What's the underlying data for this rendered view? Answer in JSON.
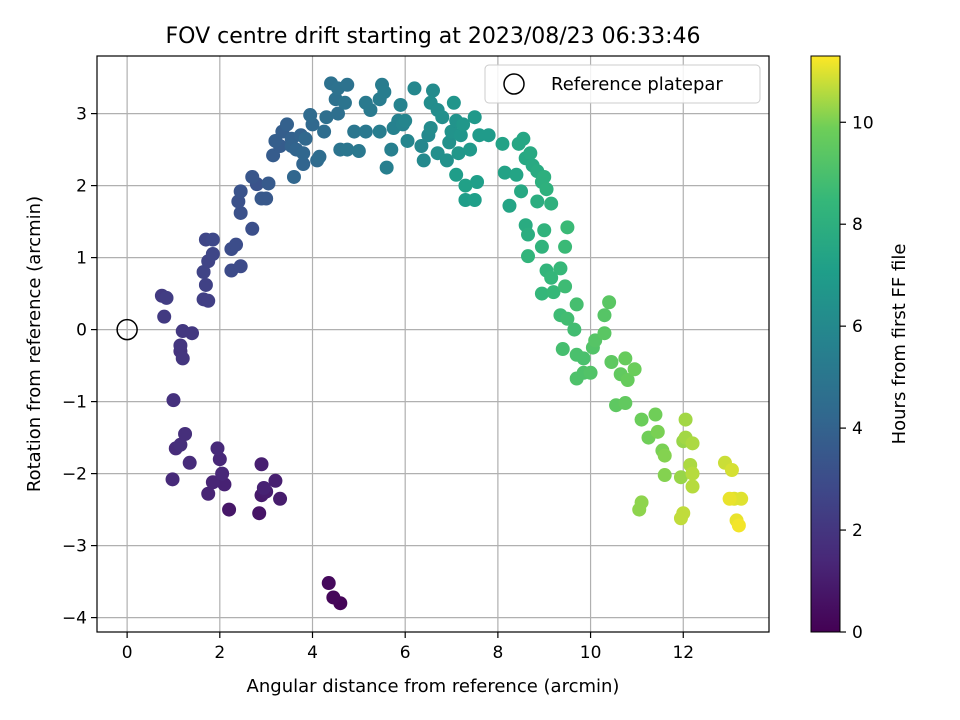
{
  "chart_data": {
    "type": "scatter",
    "title": "FOV centre drift starting at 2023/08/23 06:33:46",
    "xlabel": "Angular distance from reference (arcmin)",
    "ylabel": "Rotation from reference (arcmin)",
    "xlim": [
      -0.65,
      13.85
    ],
    "ylim": [
      -4.2,
      3.8
    ],
    "x_ticks": [
      0,
      2,
      4,
      6,
      8,
      10,
      12
    ],
    "y_ticks": [
      -4,
      -3,
      -2,
      -1,
      0,
      1,
      2,
      3
    ],
    "x_tick_labels": [
      "0",
      "2",
      "4",
      "6",
      "8",
      "10",
      "12"
    ],
    "y_tick_labels": [
      "−4",
      "−3",
      "−2",
      "−1",
      "0",
      "1",
      "2",
      "3"
    ],
    "grid": true,
    "legend": {
      "position": "top-right",
      "entries": [
        "Reference platepar"
      ]
    },
    "reference_point": {
      "x": 0,
      "y": 0,
      "label": "Reference platepar"
    },
    "colorbar": {
      "label": "Hours from first FF file",
      "colormap": "viridis",
      "range": [
        0,
        11.3
      ],
      "ticks": [
        0,
        2,
        4,
        6,
        8,
        10
      ],
      "tick_labels": [
        "0",
        "2",
        "4",
        "6",
        "8",
        "10"
      ]
    },
    "series": [
      {
        "points": [
          [
            4.6,
            -3.8,
            0.1
          ],
          [
            4.45,
            -3.72,
            0.2
          ],
          [
            4.35,
            -3.52,
            0.3
          ],
          [
            2.85,
            -2.55,
            0.7
          ],
          [
            2.2,
            -2.5,
            0.8
          ],
          [
            2.9,
            -2.3,
            0.9
          ],
          [
            3.3,
            -2.35,
            1.0
          ],
          [
            3.0,
            -2.25,
            1.0
          ],
          [
            3.2,
            -2.1,
            1.1
          ],
          [
            2.9,
            -1.87,
            1.1
          ],
          [
            2.95,
            -2.2,
            1.2
          ],
          [
            2.1,
            -2.15,
            1.2
          ],
          [
            1.75,
            -2.28,
            1.3
          ],
          [
            1.85,
            -2.12,
            1.3
          ],
          [
            2.05,
            -2.0,
            1.4
          ],
          [
            2.0,
            -1.8,
            1.4
          ],
          [
            1.95,
            -1.65,
            1.5
          ],
          [
            0.98,
            -2.08,
            1.5
          ],
          [
            1.35,
            -1.85,
            1.6
          ],
          [
            1.05,
            -1.65,
            1.6
          ],
          [
            1.15,
            -1.6,
            1.7
          ],
          [
            1.25,
            -1.45,
            1.7
          ],
          [
            1.0,
            -0.98,
            1.8
          ],
          [
            1.15,
            -0.3,
            1.9
          ],
          [
            1.2,
            -0.4,
            2.0
          ],
          [
            1.15,
            -0.22,
            2.0
          ],
          [
            1.2,
            -0.02,
            2.1
          ],
          [
            1.4,
            -0.05,
            2.1
          ],
          [
            0.8,
            0.18,
            2.2
          ],
          [
            0.75,
            0.47,
            2.2
          ],
          [
            0.85,
            0.44,
            2.3
          ],
          [
            1.65,
            0.42,
            2.4
          ],
          [
            1.75,
            0.4,
            2.4
          ],
          [
            1.7,
            0.62,
            2.5
          ],
          [
            1.65,
            0.8,
            2.6
          ],
          [
            1.75,
            0.95,
            2.6
          ],
          [
            1.85,
            1.05,
            2.7
          ],
          [
            1.7,
            1.25,
            2.7
          ],
          [
            1.85,
            1.25,
            2.8
          ],
          [
            2.25,
            0.82,
            2.9
          ],
          [
            2.45,
            0.88,
            2.9
          ],
          [
            2.25,
            1.12,
            3.0
          ],
          [
            2.35,
            1.18,
            3.0
          ],
          [
            2.7,
            1.4,
            3.1
          ],
          [
            2.45,
            1.62,
            3.2
          ],
          [
            2.4,
            1.78,
            3.2
          ],
          [
            2.45,
            1.92,
            3.3
          ],
          [
            2.8,
            2.02,
            3.3
          ],
          [
            2.7,
            2.12,
            3.4
          ],
          [
            2.9,
            1.82,
            3.5
          ],
          [
            3.0,
            1.82,
            3.5
          ],
          [
            3.05,
            2.03,
            3.6
          ],
          [
            3.15,
            2.42,
            3.7
          ],
          [
            3.3,
            2.55,
            3.7
          ],
          [
            3.2,
            2.62,
            3.8
          ],
          [
            3.35,
            2.75,
            3.8
          ],
          [
            3.45,
            2.85,
            3.9
          ],
          [
            3.55,
            2.65,
            3.9
          ],
          [
            3.75,
            2.7,
            4.0
          ],
          [
            3.55,
            2.55,
            4.0
          ],
          [
            3.65,
            2.5,
            4.1
          ],
          [
            3.8,
            2.3,
            4.1
          ],
          [
            3.8,
            2.45,
            4.2
          ],
          [
            3.6,
            2.12,
            4.2
          ],
          [
            3.85,
            2.65,
            4.3
          ],
          [
            4.0,
            2.85,
            4.3
          ],
          [
            3.95,
            2.98,
            4.4
          ],
          [
            4.1,
            2.35,
            4.4
          ],
          [
            4.15,
            2.4,
            4.5
          ],
          [
            4.25,
            2.75,
            4.5
          ],
          [
            4.3,
            2.95,
            4.6
          ],
          [
            4.55,
            3.0,
            4.6
          ],
          [
            4.5,
            3.2,
            4.7
          ],
          [
            4.4,
            3.42,
            4.7
          ],
          [
            4.55,
            3.35,
            4.8
          ],
          [
            4.75,
            3.4,
            4.8
          ],
          [
            4.7,
            3.15,
            4.9
          ],
          [
            4.6,
            2.5,
            4.9
          ],
          [
            4.75,
            2.5,
            5.0
          ],
          [
            4.9,
            2.75,
            5.0
          ],
          [
            5.0,
            2.48,
            5.1
          ],
          [
            5.15,
            2.75,
            5.1
          ],
          [
            5.15,
            3.15,
            5.2
          ],
          [
            5.25,
            3.05,
            5.2
          ],
          [
            5.45,
            3.2,
            5.3
          ],
          [
            5.5,
            3.4,
            5.3
          ],
          [
            5.55,
            3.3,
            5.4
          ],
          [
            5.45,
            2.75,
            5.4
          ],
          [
            5.6,
            2.25,
            5.5
          ],
          [
            5.7,
            2.5,
            5.5
          ],
          [
            5.75,
            2.8,
            5.6
          ],
          [
            5.85,
            2.9,
            5.6
          ],
          [
            5.9,
            3.12,
            5.7
          ],
          [
            5.95,
            2.85,
            5.7
          ],
          [
            6.0,
            2.9,
            5.8
          ],
          [
            6.05,
            2.62,
            5.8
          ],
          [
            6.2,
            3.35,
            5.9
          ],
          [
            6.35,
            2.55,
            5.9
          ],
          [
            6.4,
            2.35,
            6.0
          ],
          [
            6.5,
            2.7,
            6.0
          ],
          [
            6.55,
            2.8,
            6.1
          ],
          [
            6.6,
            3.32,
            6.1
          ],
          [
            6.55,
            3.15,
            6.2
          ],
          [
            6.7,
            3.05,
            6.2
          ],
          [
            6.8,
            2.95,
            6.3
          ],
          [
            6.7,
            2.45,
            6.3
          ],
          [
            6.9,
            2.35,
            6.4
          ],
          [
            6.95,
            2.6,
            6.4
          ],
          [
            7.0,
            2.75,
            6.5
          ],
          [
            7.1,
            2.9,
            6.5
          ],
          [
            7.05,
            3.15,
            6.6
          ],
          [
            7.2,
            2.7,
            6.6
          ],
          [
            7.15,
            2.45,
            6.7
          ],
          [
            7.25,
            2.85,
            6.7
          ],
          [
            7.4,
            2.5,
            6.8
          ],
          [
            7.5,
            2.95,
            6.8
          ],
          [
            7.6,
            2.7,
            6.9
          ],
          [
            7.8,
            2.7,
            6.9
          ],
          [
            7.1,
            2.15,
            7.0
          ],
          [
            7.3,
            1.8,
            7.0
          ],
          [
            7.5,
            1.8,
            7.1
          ],
          [
            7.55,
            2.05,
            7.1
          ],
          [
            7.3,
            2.0,
            7.2
          ],
          [
            8.1,
            2.58,
            7.3
          ],
          [
            8.15,
            2.18,
            7.3
          ],
          [
            8.25,
            1.72,
            7.4
          ],
          [
            8.4,
            2.15,
            7.4
          ],
          [
            8.45,
            2.58,
            7.5
          ],
          [
            8.55,
            2.65,
            7.5
          ],
          [
            8.6,
            2.38,
            7.6
          ],
          [
            8.5,
            1.92,
            7.6
          ],
          [
            8.7,
            2.45,
            7.7
          ],
          [
            8.75,
            2.28,
            7.7
          ],
          [
            8.85,
            2.2,
            7.8
          ],
          [
            8.6,
            1.45,
            7.8
          ],
          [
            8.65,
            1.32,
            7.9
          ],
          [
            8.85,
            1.78,
            7.9
          ],
          [
            8.95,
            2.05,
            8.0
          ],
          [
            9.0,
            2.12,
            8.0
          ],
          [
            9.05,
            1.95,
            8.1
          ],
          [
            9.15,
            1.75,
            8.1
          ],
          [
            9.0,
            1.38,
            8.2
          ],
          [
            8.95,
            1.15,
            8.2
          ],
          [
            8.65,
            1.02,
            8.3
          ],
          [
            9.05,
            0.82,
            8.3
          ],
          [
            9.15,
            0.72,
            8.4
          ],
          [
            8.95,
            0.5,
            8.4
          ],
          [
            9.2,
            0.52,
            8.5
          ],
          [
            9.35,
            0.85,
            8.5
          ],
          [
            9.45,
            1.15,
            8.6
          ],
          [
            9.5,
            1.42,
            8.6
          ],
          [
            9.45,
            0.6,
            8.7
          ],
          [
            9.35,
            0.2,
            8.7
          ],
          [
            9.5,
            0.15,
            8.8
          ],
          [
            9.65,
            0.0,
            8.8
          ],
          [
            9.7,
            0.35,
            8.9
          ],
          [
            9.4,
            -0.27,
            8.9
          ],
          [
            9.7,
            -0.35,
            9.0
          ],
          [
            9.85,
            -0.4,
            9.0
          ],
          [
            9.7,
            -0.68,
            9.1
          ],
          [
            9.85,
            -0.6,
            9.1
          ],
          [
            10.0,
            -0.6,
            9.2
          ],
          [
            10.05,
            -0.25,
            9.2
          ],
          [
            10.1,
            -0.15,
            9.3
          ],
          [
            10.3,
            0.2,
            9.3
          ],
          [
            10.4,
            0.38,
            9.4
          ],
          [
            10.3,
            -0.05,
            9.4
          ],
          [
            10.45,
            -0.45,
            9.5
          ],
          [
            10.55,
            -1.05,
            9.5
          ],
          [
            10.75,
            -1.02,
            9.6
          ],
          [
            10.65,
            -0.62,
            9.6
          ],
          [
            10.8,
            -0.7,
            9.7
          ],
          [
            10.75,
            -0.4,
            9.7
          ],
          [
            10.95,
            -0.55,
            9.8
          ],
          [
            11.1,
            -1.25,
            9.8
          ],
          [
            11.4,
            -1.18,
            9.9
          ],
          [
            11.25,
            -1.5,
            9.9
          ],
          [
            11.45,
            -1.42,
            10.0
          ],
          [
            11.55,
            -1.68,
            10.0
          ],
          [
            11.6,
            -1.75,
            10.1
          ],
          [
            11.6,
            -2.02,
            10.1
          ],
          [
            11.1,
            -2.4,
            10.2
          ],
          [
            11.05,
            -2.5,
            10.2
          ],
          [
            11.95,
            -2.05,
            10.3
          ],
          [
            12.0,
            -1.55,
            10.3
          ],
          [
            12.05,
            -1.25,
            10.4
          ],
          [
            12.05,
            -1.5,
            10.4
          ],
          [
            12.2,
            -1.58,
            10.5
          ],
          [
            12.15,
            -1.88,
            10.5
          ],
          [
            12.2,
            -2.0,
            10.6
          ],
          [
            12.2,
            -2.18,
            10.6
          ],
          [
            12.0,
            -2.55,
            10.7
          ],
          [
            11.95,
            -2.62,
            10.7
          ],
          [
            12.9,
            -1.85,
            10.8
          ],
          [
            13.05,
            -1.95,
            10.9
          ],
          [
            13.1,
            -2.35,
            11.0
          ],
          [
            13.25,
            -2.35,
            11.0
          ],
          [
            13.0,
            -2.35,
            11.1
          ],
          [
            13.15,
            -2.65,
            11.1
          ],
          [
            13.2,
            -2.72,
            11.2
          ]
        ]
      }
    ]
  }
}
